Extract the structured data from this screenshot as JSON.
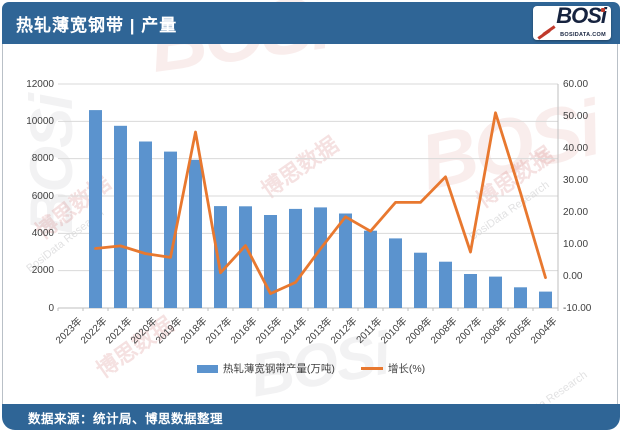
{
  "header": {
    "title": "热轧薄宽钢带 | 产量",
    "logo": {
      "text": "BOSi",
      "domain": "BOSIDATA.COM"
    }
  },
  "footer": {
    "source": "数据来源：统计局、博思数据整理"
  },
  "watermarks": {
    "cn": "博思数据",
    "en": "BosiData Research",
    "logo": "BOSi"
  },
  "colors": {
    "band_blue": "#2F6596",
    "bar_blue": "#5B93CE",
    "line_orange": "#E8782F",
    "gridline": "#D9D9D9",
    "axis_line": "#BFBFBF",
    "tick_text": "#3F3F3F"
  },
  "chart_data": {
    "type": "bar",
    "subtype": "bar+line combo, dual axis",
    "title": "热轧薄宽钢带 | 产量",
    "categories": [
      "2023年",
      "2022年",
      "2021年",
      "2020年",
      "2019年",
      "2018年",
      "2017年",
      "2016年",
      "2015年",
      "2014年",
      "2013年",
      "2012年",
      "2011年",
      "2010年",
      "2009年",
      "2008年",
      "2007年",
      "2006年",
      "2005年",
      "2004年"
    ],
    "series": [
      {
        "name": "热轧薄宽钢带产量(万吨)",
        "type": "bar",
        "axis": "left",
        "color": "#5B93CE",
        "values": [
          null,
          10600,
          9760,
          8920,
          8380,
          7940,
          5460,
          5450,
          4980,
          5310,
          5390,
          5060,
          4140,
          3730,
          2960,
          2480,
          1820,
          1680,
          1110,
          880
        ]
      },
      {
        "name": "增长(%)",
        "type": "line",
        "axis": "right",
        "color": "#E8782F",
        "values": [
          null,
          8.6,
          9.4,
          7.0,
          5.8,
          45.0,
          1.0,
          9.5,
          -5.5,
          -2.0,
          8.5,
          18.5,
          14.0,
          23.0,
          23.0,
          31.0,
          7.5,
          51.0,
          26.0,
          -0.5
        ]
      }
    ],
    "left_axis": {
      "min": 0,
      "max": 12000,
      "step": 2000,
      "tick_labels_top_to_bottom": [
        "12000",
        "10000",
        "8000",
        "6000",
        "4000",
        "2000",
        "0"
      ]
    },
    "right_axis": {
      "min": -10,
      "max": 60,
      "step": 10,
      "tick_labels_top_to_bottom": [
        "60.00",
        "50.00",
        "40.00",
        "30.00",
        "20.00",
        "10.00",
        "0.00",
        "-10.00"
      ]
    },
    "legend_position": "bottom",
    "grid": true
  }
}
